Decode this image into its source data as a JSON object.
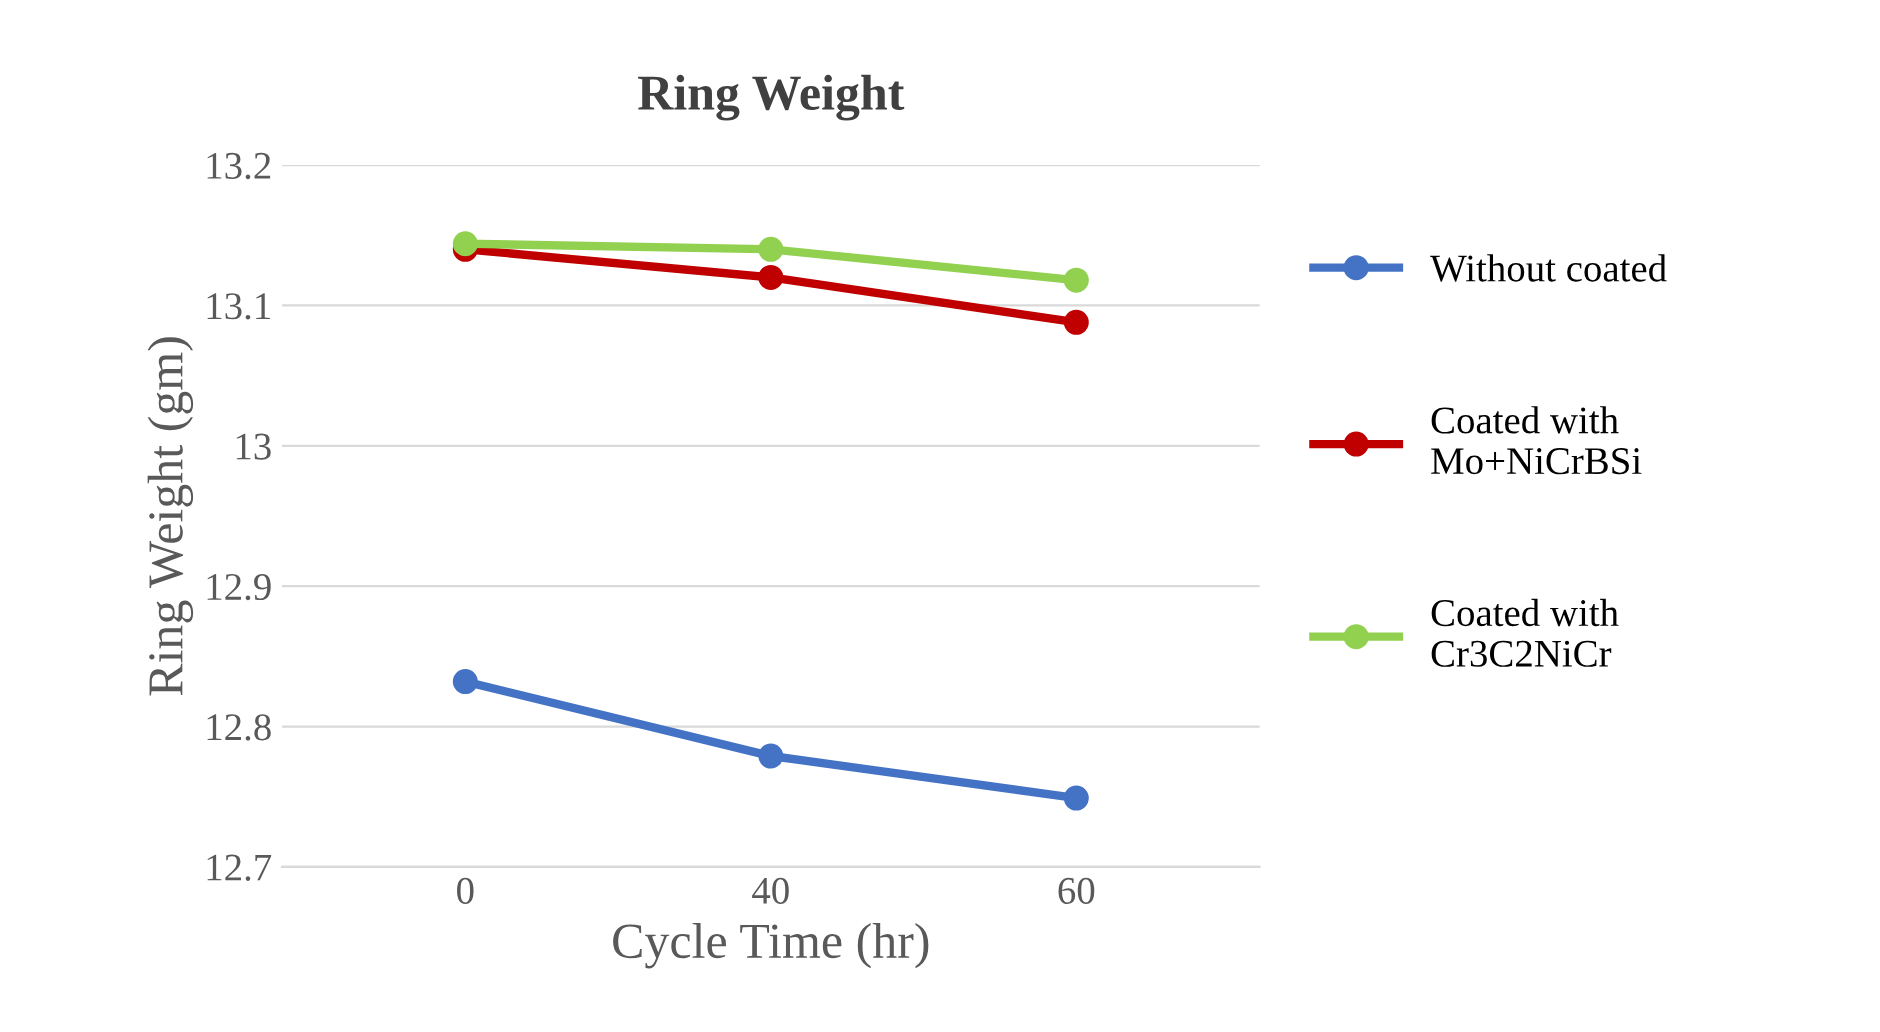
{
  "chart_data": {
    "type": "line",
    "title": "Ring Weight",
    "xlabel": "Cycle Time (hr)",
    "ylabel": "Ring Weight (gm)",
    "categories": [
      "0",
      "40",
      "60"
    ],
    "series": [
      {
        "name": "Without coated",
        "color": "#4472c4",
        "values": [
          12.832,
          12.779,
          12.749
        ]
      },
      {
        "name": "Coated with Mo+NiCrBSi",
        "color": "#c00000",
        "values": [
          13.14,
          13.12,
          13.088
        ]
      },
      {
        "name": "Coated with Cr3C2NiCr",
        "color": "#92d050",
        "values": [
          13.144,
          13.14,
          13.118
        ]
      }
    ],
    "ylim": [
      12.7,
      13.2
    ],
    "yticks": [
      12.7,
      12.8,
      12.9,
      13,
      13.1,
      13.2
    ],
    "grid": "y",
    "legend": "right",
    "marker": "circle",
    "line_style": "solid"
  }
}
